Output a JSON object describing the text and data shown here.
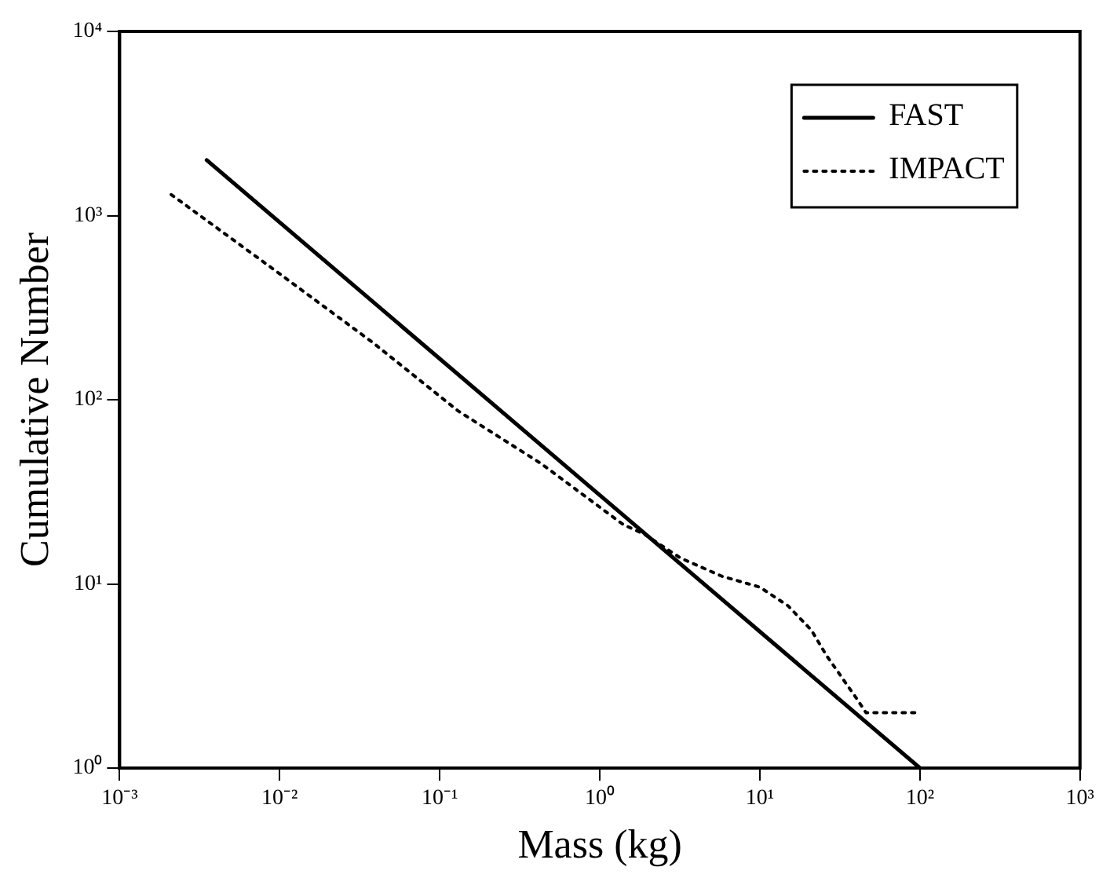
{
  "chart_data": {
    "type": "line",
    "xlabel": "Mass (kg)",
    "ylabel": "Cumulative Number",
    "log": "xy",
    "grid": false,
    "legend": "top right",
    "marker": "none",
    "xlim": [
      0.001,
      1000
    ],
    "xticks": [
      {
        "value": 0.001,
        "label": "10⁻³"
      },
      {
        "value": 0.01,
        "label": "10⁻²"
      },
      {
        "value": 0.1,
        "label": "10⁻¹"
      },
      {
        "value": 1,
        "label": "10⁰"
      },
      {
        "value": 10,
        "label": "10¹"
      },
      {
        "value": 100,
        "label": "10²"
      },
      {
        "value": 1000,
        "label": "10³"
      }
    ],
    "ylim": [
      1,
      10000
    ],
    "yticks": [
      {
        "value": 1,
        "label": "10⁰"
      },
      {
        "value": 10,
        "label": "10¹"
      },
      {
        "value": 100,
        "label": "10²"
      },
      {
        "value": 1000,
        "label": "10³"
      },
      {
        "value": 10000,
        "label": "10⁴"
      }
    ],
    "series": [
      {
        "name": "FAST",
        "color": "#000000",
        "line_style": "solid",
        "x": [
          0.0035,
          100
        ],
        "values": [
          2000,
          1
        ]
      },
      {
        "name": "IMPACT",
        "color": "#000000",
        "line_style": "dotted",
        "x": [
          0.0021,
          0.0089,
          0.038,
          0.13,
          0.43,
          1.4,
          1.9,
          3.2,
          5.8,
          10,
          15,
          21,
          26,
          40,
          46,
          95
        ],
        "values": [
          1300,
          520,
          205,
          87,
          45,
          21,
          18.6,
          13.8,
          11,
          9.6,
          7.6,
          5.6,
          4.1,
          2.4,
          2,
          2
        ]
      }
    ]
  }
}
